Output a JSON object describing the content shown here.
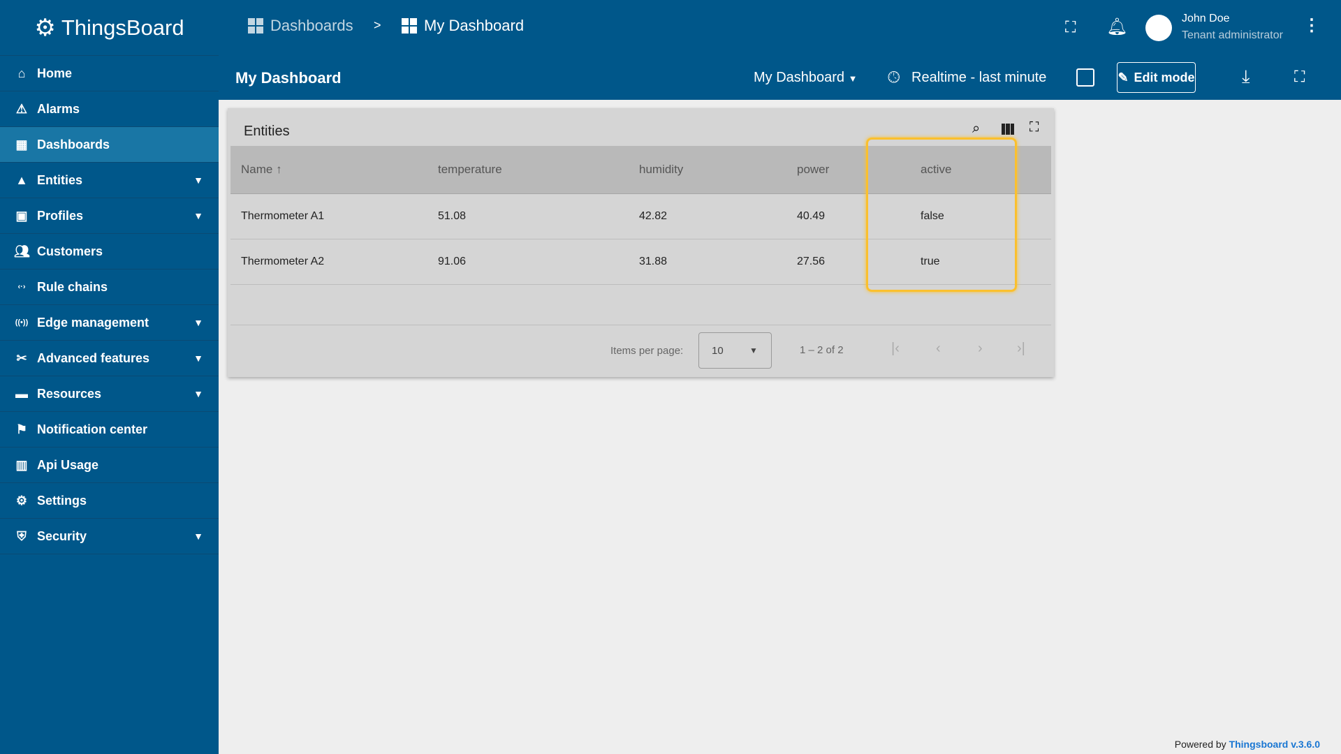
{
  "app": {
    "name": "ThingsBoard"
  },
  "breadcrumb": [
    "Dashboards",
    "My Dashboard"
  ],
  "breadcrumb_sep": ">",
  "user": {
    "name": "John Doe",
    "role": "Tenant administrator"
  },
  "sidebar": {
    "items": [
      {
        "label": "Home",
        "icon": "home-icon",
        "expandable": false
      },
      {
        "label": "Alarms",
        "icon": "warning-icon",
        "expandable": false
      },
      {
        "label": "Dashboards",
        "icon": "dashboard-icon",
        "expandable": false,
        "active": true
      },
      {
        "label": "Entities",
        "icon": "shapes-icon",
        "expandable": true
      },
      {
        "label": "Profiles",
        "icon": "badge-icon",
        "expandable": true
      },
      {
        "label": "Customers",
        "icon": "people-icon",
        "expandable": false
      },
      {
        "label": "Rule chains",
        "icon": "code-arrows-icon",
        "expandable": false
      },
      {
        "label": "Edge management",
        "icon": "antenna-icon",
        "expandable": true
      },
      {
        "label": "Advanced features",
        "icon": "tools-icon",
        "expandable": true
      },
      {
        "label": "Resources",
        "icon": "folder-icon",
        "expandable": true
      },
      {
        "label": "Notification center",
        "icon": "chat-flag-icon",
        "expandable": false
      },
      {
        "label": "Api Usage",
        "icon": "bar-chart-icon",
        "expandable": false
      },
      {
        "label": "Settings",
        "icon": "gear-icon",
        "expandable": false
      },
      {
        "label": "Security",
        "icon": "shield-icon",
        "expandable": true
      }
    ]
  },
  "toolbar": {
    "title": "My Dashboard",
    "dashboard_select": "My Dashboard",
    "timewindow": "Realtime - last minute",
    "edit_mode": "Edit mode"
  },
  "widget": {
    "title": "Entities",
    "columns": [
      "Name",
      "temperature",
      "humidity",
      "power",
      "active"
    ],
    "rows": [
      [
        "Thermometer A1",
        "51.08",
        "42.82",
        "40.49",
        "false"
      ],
      [
        "Thermometer A2",
        "91.06",
        "31.88",
        "27.56",
        "true"
      ]
    ],
    "items_per_page_label": "Items per page:",
    "items_per_page": "10",
    "range": "1 – 2 of 2"
  },
  "footer": {
    "prefix": "Powered by",
    "link": "Thingsboard v.3.6.0"
  },
  "colors": {
    "primary": "#00578a",
    "active_nav": "#1976a5",
    "highlight": "#fbc02d"
  }
}
